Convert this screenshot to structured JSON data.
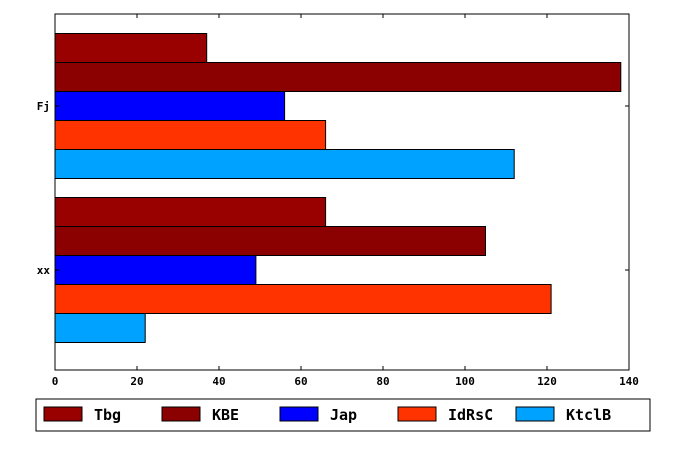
{
  "chart_data": {
    "type": "bar",
    "orientation": "horizontal",
    "categories": [
      "xx",
      "Fj"
    ],
    "series": [
      {
        "name": "Tbg",
        "color": "#990000",
        "values": [
          66,
          37
        ]
      },
      {
        "name": "KBE",
        "color": "#8b0000",
        "values": [
          105,
          138
        ]
      },
      {
        "name": "Jap",
        "color": "#0000ff",
        "values": [
          49,
          56
        ]
      },
      {
        "name": "IdRsC",
        "color": "#ff3300",
        "values": [
          121,
          66
        ]
      },
      {
        "name": "KtclB",
        "color": "#00a2ff",
        "values": [
          22,
          112
        ]
      }
    ],
    "xlim": [
      0,
      140
    ],
    "xticks": [
      "0",
      "20",
      "40",
      "60",
      "80",
      "100",
      "120",
      "140"
    ],
    "title": "",
    "xlabel": "",
    "ylabel": "",
    "grid": false,
    "legend_position": "bottom"
  }
}
